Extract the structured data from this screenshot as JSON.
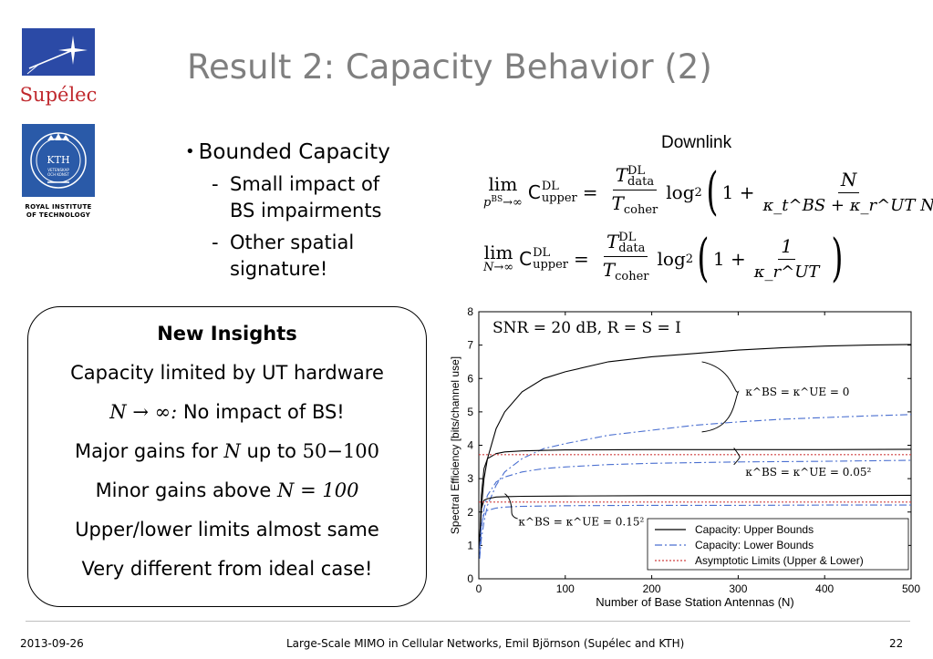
{
  "logos": {
    "supelec_text": "Supélec",
    "kth_badge_text": [
      "KTH",
      "VETENSKAP",
      "OCH KONST"
    ],
    "kth_caption": [
      "ROYAL INSTITUTE",
      "OF TECHNOLOGY"
    ]
  },
  "title": "Result 2: Capacity Behavior (2)",
  "bullets": {
    "main": "Bounded Capacity",
    "subs": [
      [
        "Small impact of",
        "BS impairments"
      ],
      [
        "Other spatial",
        "signature!"
      ]
    ],
    "dash": "-"
  },
  "equations": {
    "header": "Downlink",
    "eq1": {
      "lim_top": "lim",
      "lim_bottom": "p^BS→∞",
      "lhs": "C",
      "lhs_sup": "DL",
      "lhs_sub": "upper",
      "num": "T",
      "num_sup": "DL",
      "num_sub": "data",
      "den": "T",
      "den_sub": "coher",
      "log": "log",
      "log_sub": "2",
      "one_plus": "1 +",
      "inner_num": "N",
      "inner_den": "κ_t^BS + κ_r^UT N"
    },
    "eq2": {
      "lim_top": "lim",
      "lim_bottom": "N→∞",
      "lhs": "C",
      "lhs_sup": "DL",
      "lhs_sub": "upper",
      "num": "T",
      "num_sup": "DL",
      "num_sub": "data",
      "den": "T",
      "den_sub": "coher",
      "log": "log",
      "log_sub": "2",
      "one_plus": "1 +",
      "inner_num": "1",
      "inner_den": "κ_r^UT"
    }
  },
  "insights": {
    "heading": "New Insights",
    "lines": [
      "Capacity limited by UT hardware",
      "No impact of BS!",
      "Major gains for",
      "Minor gains above",
      "Upper/lower limits almost same",
      "Very different from ideal case!"
    ],
    "math": {
      "n_limit": "N → ∞:",
      "up_to": "up to",
      "range": "50−100",
      "n_eq": "N = 100",
      "n": "N"
    }
  },
  "chart_data": {
    "type": "line",
    "annotation_snr": "SNR = 20 dB, R = S = I",
    "xlabel": "Number of Base Station Antennas (N)",
    "ylabel": "Spectral Efficiency [bits/channel use]",
    "xlim": [
      0,
      500
    ],
    "ylim": [
      0,
      8
    ],
    "xticks": [
      0,
      100,
      200,
      300,
      400,
      500
    ],
    "yticks": [
      0,
      1,
      2,
      3,
      4,
      5,
      6,
      7,
      8
    ],
    "legend": {
      "position": "bottom-right",
      "entries": [
        {
          "label": "Capacity: Upper Bounds",
          "color": "#000000",
          "style": "solid"
        },
        {
          "label": "Capacity: Lower Bounds",
          "color": "#4a6fd0",
          "style": "dashdot"
        },
        {
          "label": "Asymptotic Limits (Upper & Lower)",
          "color": "#d04040",
          "style": "dotted"
        }
      ]
    },
    "curve_labels": [
      {
        "text": "κ^BS = κ^UE = 0",
        "at": [
          300,
          5.6
        ]
      },
      {
        "text": "κ^BS = κ^UE = 0.05²",
        "at": [
          300,
          3.2
        ]
      },
      {
        "text": "κ^BS = κ^UE = 0.15²",
        "at": [
          50,
          1.7
        ]
      }
    ],
    "series": [
      {
        "group": "0",
        "kind": "upper",
        "color": "#000000",
        "style": "solid",
        "x": [
          1,
          3,
          6,
          10,
          20,
          30,
          50,
          75,
          100,
          150,
          200,
          250,
          300,
          350,
          400,
          450,
          500
        ],
        "y": [
          1.0,
          2.1,
          3.0,
          3.6,
          4.5,
          5.0,
          5.6,
          6.0,
          6.2,
          6.5,
          6.65,
          6.75,
          6.85,
          6.92,
          6.97,
          7.0,
          7.02
        ]
      },
      {
        "group": "0",
        "kind": "lower",
        "color": "#4a6fd0",
        "style": "dashdot",
        "x": [
          1,
          3,
          6,
          10,
          20,
          30,
          50,
          75,
          100,
          150,
          200,
          250,
          300,
          350,
          400,
          450,
          500
        ],
        "y": [
          0.6,
          1.2,
          1.7,
          2.2,
          2.8,
          3.2,
          3.6,
          3.9,
          4.05,
          4.3,
          4.45,
          4.6,
          4.7,
          4.78,
          4.83,
          4.88,
          4.92
        ]
      },
      {
        "group": "0.05²",
        "kind": "upper",
        "color": "#000000",
        "style": "solid",
        "x": [
          1,
          3,
          6,
          10,
          20,
          30,
          50,
          100,
          200,
          300,
          400,
          500
        ],
        "y": [
          1.0,
          2.5,
          3.3,
          3.6,
          3.75,
          3.8,
          3.83,
          3.86,
          3.87,
          3.87,
          3.87,
          3.88
        ]
      },
      {
        "group": "0.05²",
        "kind": "lower",
        "color": "#4a6fd0",
        "style": "dashdot",
        "x": [
          1,
          3,
          6,
          10,
          20,
          30,
          50,
          75,
          100,
          150,
          200,
          300,
          400,
          500
        ],
        "y": [
          0.7,
          1.5,
          2.1,
          2.5,
          2.9,
          3.05,
          3.2,
          3.3,
          3.35,
          3.42,
          3.46,
          3.5,
          3.52,
          3.55
        ]
      },
      {
        "group": "0.05²",
        "kind": "limit",
        "color": "#d04040",
        "style": "dotted",
        "x": [
          0,
          500
        ],
        "y": [
          3.72,
          3.72
        ]
      },
      {
        "group": "0.15²",
        "kind": "upper",
        "color": "#000000",
        "style": "solid",
        "x": [
          1,
          3,
          6,
          10,
          20,
          30,
          50,
          100,
          200,
          300,
          400,
          500
        ],
        "y": [
          1.2,
          2.1,
          2.35,
          2.4,
          2.45,
          2.46,
          2.47,
          2.48,
          2.49,
          2.49,
          2.49,
          2.5
        ]
      },
      {
        "group": "0.15²",
        "kind": "lower",
        "color": "#4a6fd0",
        "style": "dashdot",
        "x": [
          1,
          3,
          6,
          10,
          20,
          30,
          50,
          100,
          200,
          300,
          400,
          500
        ],
        "y": [
          0.9,
          1.6,
          1.95,
          2.05,
          2.12,
          2.15,
          2.17,
          2.19,
          2.2,
          2.2,
          2.21,
          2.21
        ]
      },
      {
        "group": "0.15²",
        "kind": "limit",
        "color": "#d04040",
        "style": "dotted",
        "x": [
          0,
          500
        ],
        "y": [
          2.3,
          2.3
        ]
      }
    ]
  },
  "footer": {
    "date": "2013-09-26",
    "center": "Large-Scale MIMO in Cellular Networks, Emil Björnson (Supélec and KTH)",
    "page": "22"
  }
}
